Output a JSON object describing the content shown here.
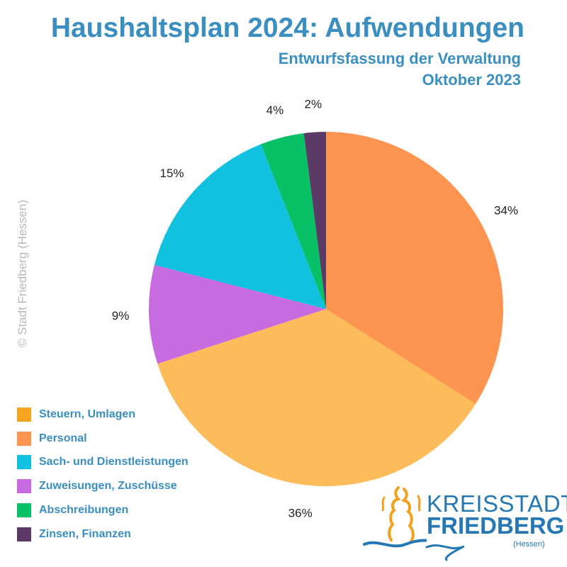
{
  "header": {
    "title": "Haushaltsplan 2024: Aufwendungen",
    "subtitle_line1": "Entwurfsfassung der Verwaltung",
    "subtitle_line2": "Oktober 2023"
  },
  "copyright": "© Stadt Friedberg (Hessen)",
  "chart_data": {
    "type": "pie",
    "title": "Haushaltsplan 2024: Aufwendungen",
    "subtitle": "Entwurfsfassung der Verwaltung Oktober 2023",
    "slices": [
      {
        "label": "Personal",
        "value": 34,
        "display": "34%",
        "color": "#fd9450"
      },
      {
        "label": "Steuern, Umlagen",
        "value": 36,
        "display": "36%",
        "color": "#fdbb5a"
      },
      {
        "label": "Zuweisungen, Zuschüsse",
        "value": 9,
        "display": "9%",
        "color": "#c96be0"
      },
      {
        "label": "Sach- und Dienstleistungen",
        "value": 15,
        "display": "15%",
        "color": "#10c1e0"
      },
      {
        "label": "Abschreibungen",
        "value": 4,
        "display": "4%",
        "color": "#08c065"
      },
      {
        "label": "Zinsen, Finanzen",
        "value": 2,
        "display": "2%",
        "color": "#5c3a66"
      }
    ],
    "start_angle_deg": 0,
    "direction": "clockwise",
    "legend_position": "bottom-left"
  },
  "legend": [
    {
      "label": "Steuern, Umlagen",
      "color": "#f7a521"
    },
    {
      "label": "Personal",
      "color": "#fd9450"
    },
    {
      "label": "Sach- und Dienstleistungen",
      "color": "#10c1e0"
    },
    {
      "label": "Zuweisungen, Zuschüsse",
      "color": "#c96be0"
    },
    {
      "label": "Abschreibungen",
      "color": "#08c065"
    },
    {
      "label": "Zinsen, Finanzen",
      "color": "#5c3a66"
    }
  ],
  "logo": {
    "line1": "KREISSTADT",
    "line2": "FRIEDBERG",
    "line3": "(Hessen)",
    "colors": {
      "text": "#2678b4",
      "tower": "#f2a11c",
      "river": "#2678b4"
    }
  }
}
